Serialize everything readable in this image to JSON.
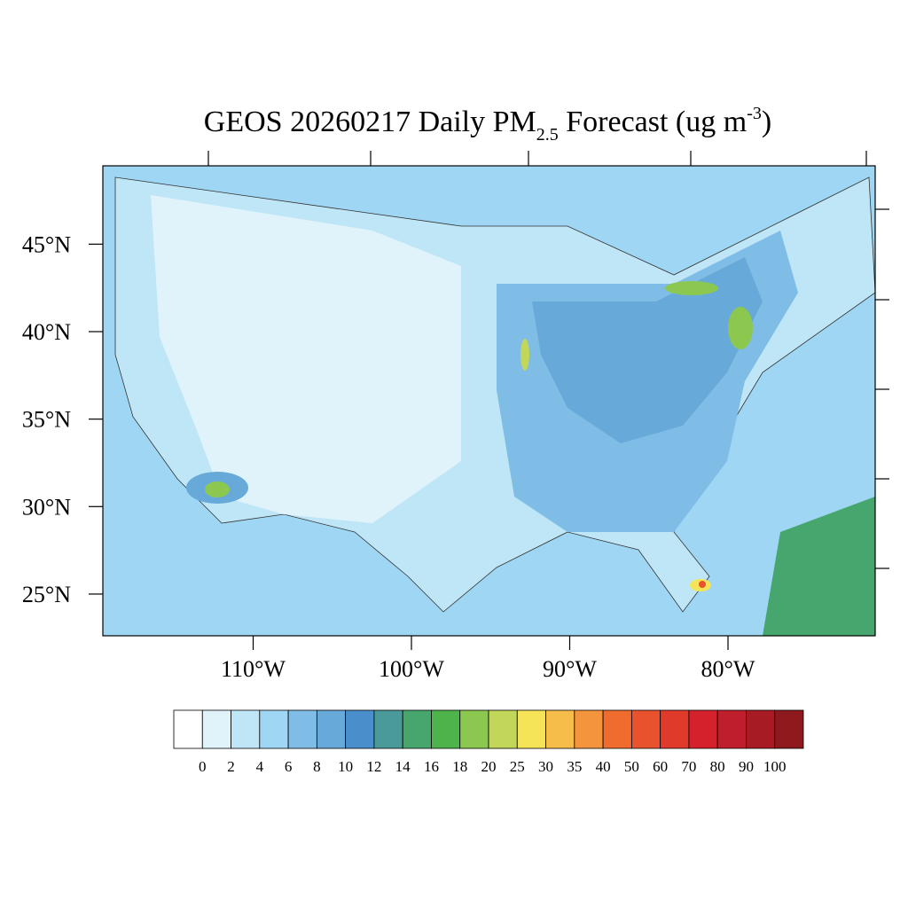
{
  "map": {
    "title": {
      "pre": "GEOS 20260217 Daily PM",
      "sub": "2.5",
      "mid": " Forecast (ug m",
      "sup": "-3",
      "post": ")"
    },
    "lat_ticks": [
      {
        "value": 45,
        "label": "45°N"
      },
      {
        "value": 40,
        "label": "40°N"
      },
      {
        "value": 35,
        "label": "35°N"
      },
      {
        "value": 30,
        "label": "30°N"
      },
      {
        "value": 25,
        "label": "25°N"
      }
    ],
    "lon_ticks": [
      {
        "value": -110,
        "label": "110°W"
      },
      {
        "value": -100,
        "label": "100°W"
      },
      {
        "value": -90,
        "label": "90°W"
      },
      {
        "value": -80,
        "label": "80°W"
      }
    ],
    "colorbar": {
      "levels": [
        0,
        2,
        4,
        6,
        8,
        10,
        12,
        14,
        16,
        18,
        20,
        25,
        30,
        35,
        40,
        50,
        60,
        70,
        80,
        90,
        100
      ],
      "colors": [
        "#ffffff",
        "#e0f3fb",
        "#bfe6f7",
        "#9fd6f3",
        "#80bde6",
        "#67a9d9",
        "#4a8fcb",
        "#4a9a9a",
        "#47a66e",
        "#4db34a",
        "#8cc84f",
        "#c2d65a",
        "#f5e358",
        "#f7bd4a",
        "#f4953e",
        "#ef6c2e",
        "#e8522d",
        "#df3a2a",
        "#d4212c",
        "#bf1e2c",
        "#a71c24",
        "#8e1a1e"
      ]
    }
  }
}
